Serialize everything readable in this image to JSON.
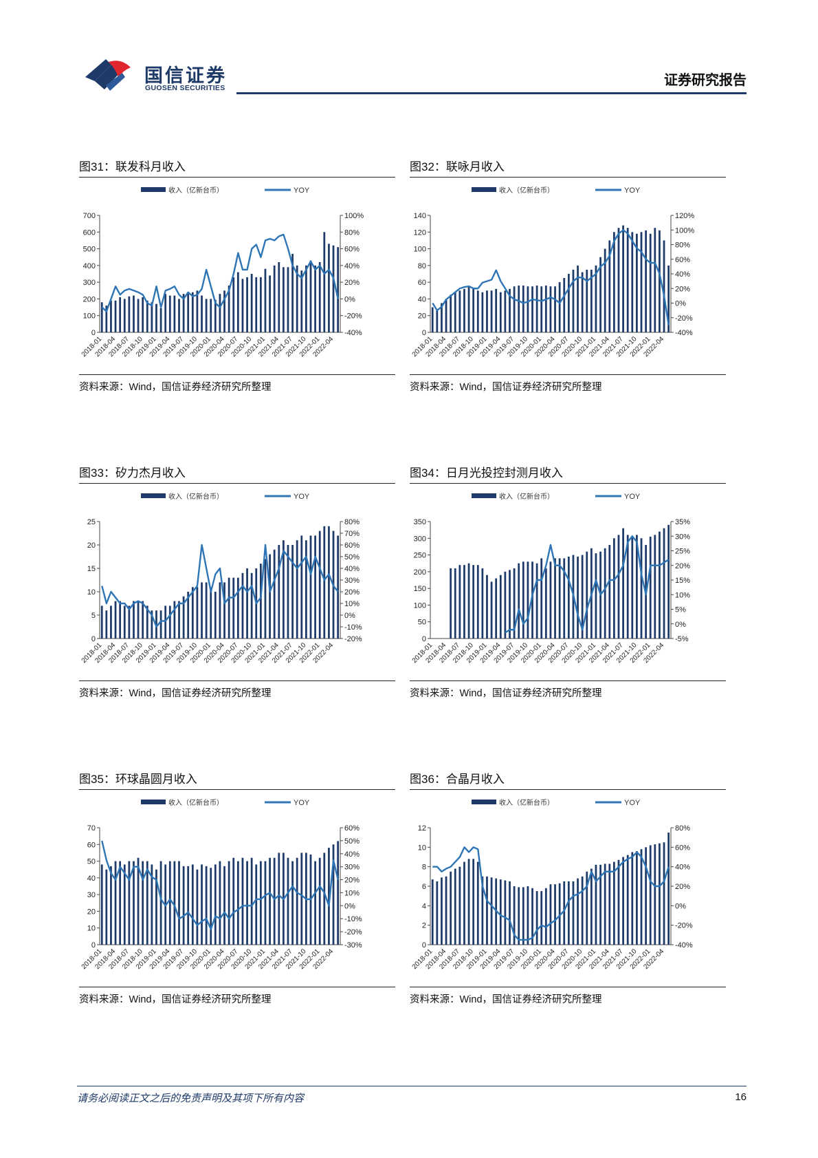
{
  "header": {
    "brand_cn": "国信证券",
    "brand_en": "GUOSEN SECURITIES",
    "report_type": "证券研究报告"
  },
  "footer": {
    "disclaimer": "请务必阅读正文之后的免责声明及其项下所有内容",
    "page_number": "16"
  },
  "colors": {
    "bar": "#1e3a68",
    "line": "#2e75b6",
    "brand": "#1e3a68",
    "brand_red": "#e0262f"
  },
  "x_tick_labels": [
    "2018-01",
    "2018-04",
    "2018-07",
    "2018-10",
    "2019-01",
    "2019-04",
    "2019-07",
    "2019-10",
    "2020-01",
    "2020-04",
    "2020-07",
    "2020-10",
    "2021-01",
    "2021-04",
    "2021-07",
    "2021-10",
    "2022-01",
    "2022-04"
  ],
  "chart_data": [
    {
      "figure": "图31：联发科月收入",
      "source": "资料来源：Wind，国信证券经济研究所整理",
      "type": "bar+line",
      "legend": {
        "bar": "收入（亿新台币）",
        "line": "YOY"
      },
      "x_start": "2018-01",
      "n_months": 53,
      "left_axis": {
        "ticks": [
          "700",
          "600",
          "500",
          "400",
          "300",
          "200",
          "100",
          "0"
        ],
        "min": 0,
        "max": 700
      },
      "right_axis": {
        "ticks": [
          "100%",
          "80%",
          "60%",
          "40%",
          "20%",
          "0%",
          "-20%",
          "-40%"
        ],
        "min": -40,
        "max": 100
      },
      "bars": [
        180,
        160,
        190,
        190,
        210,
        200,
        215,
        220,
        200,
        210,
        190,
        180,
        170,
        145,
        230,
        220,
        220,
        200,
        230,
        235,
        240,
        250,
        220,
        200,
        200,
        195,
        230,
        250,
        280,
        330,
        360,
        320,
        330,
        350,
        330,
        330,
        380,
        340,
        400,
        420,
        390,
        390,
        470,
        400,
        370,
        400,
        430,
        400,
        420,
        600,
        530,
        520,
        510
      ],
      "yoy": [
        -10,
        -15,
        0,
        15,
        5,
        10,
        12,
        10,
        8,
        5,
        -5,
        -8,
        15,
        -10,
        10,
        12,
        15,
        5,
        0,
        8,
        3,
        5,
        12,
        35,
        15,
        -5,
        -10,
        0,
        10,
        30,
        55,
        35,
        35,
        60,
        65,
        50,
        70,
        72,
        70,
        75,
        77,
        60,
        40,
        30,
        25,
        35,
        45,
        35,
        40,
        30,
        35,
        25,
        0
      ]
    },
    {
      "figure": "图32：联咏月收入",
      "source": "资料来源：Wind，国信证券经济研究所整理",
      "type": "bar+line",
      "legend": {
        "bar": "收入（亿新台币）",
        "line": "YOY"
      },
      "x_start": "2018-01",
      "n_months": 53,
      "left_axis": {
        "ticks": [
          "140",
          "120",
          "100",
          "80",
          "60",
          "40",
          "20",
          "0"
        ],
        "min": 0,
        "max": 140
      },
      "right_axis": {
        "ticks": [
          "120%",
          "100%",
          "80%",
          "60%",
          "40%",
          "20%",
          "0%",
          "-20%",
          "-40%"
        ],
        "min": -40,
        "max": 120
      },
      "bars": [
        30,
        28,
        35,
        40,
        45,
        48,
        50,
        52,
        55,
        52,
        50,
        48,
        50,
        50,
        52,
        48,
        50,
        52,
        55,
        56,
        56,
        55,
        55,
        56,
        55,
        56,
        55,
        55,
        60,
        65,
        70,
        75,
        80,
        72,
        75,
        75,
        80,
        90,
        100,
        110,
        120,
        125,
        128,
        125,
        120,
        118,
        120,
        122,
        118,
        125,
        122,
        110,
        80
      ],
      "yoy": [
        0,
        -10,
        -5,
        5,
        10,
        15,
        20,
        22,
        23,
        20,
        20,
        28,
        30,
        32,
        45,
        30,
        20,
        10,
        5,
        3,
        0,
        2,
        5,
        4,
        3,
        5,
        8,
        5,
        0,
        10,
        20,
        30,
        35,
        35,
        30,
        35,
        40,
        50,
        55,
        65,
        85,
        95,
        100,
        95,
        85,
        75,
        70,
        60,
        55,
        55,
        40,
        10,
        -30
      ]
    },
    {
      "figure": "图33：矽力杰月收入",
      "source": "资料来源：Wind，国信证券经济研究所整理",
      "type": "bar+line",
      "legend": {
        "bar": "收入（亿新台币）",
        "line": "YOY"
      },
      "x_start": "2018-01",
      "n_months": 53,
      "left_axis": {
        "ticks": [
          "25",
          "20",
          "15",
          "10",
          "5",
          "0"
        ],
        "min": 0,
        "max": 25
      },
      "right_axis": {
        "ticks": [
          "80%",
          "70%",
          "60%",
          "50%",
          "40%",
          "30%",
          "20%",
          "10%",
          "0%",
          "-10%",
          "-20%"
        ],
        "min": -20,
        "max": 80
      },
      "bars": [
        7,
        6,
        7,
        8,
        8,
        7,
        7,
        8,
        8,
        8,
        7,
        6,
        6,
        6,
        7,
        7,
        8,
        8,
        9,
        10,
        11,
        11,
        12,
        12,
        11,
        10,
        12,
        12,
        13,
        13,
        13,
        14,
        15,
        14,
        15,
        16,
        17,
        18,
        19,
        20,
        21,
        20,
        20,
        21,
        22,
        21,
        22,
        22,
        23,
        24,
        24,
        23,
        22
      ],
      "yoy": [
        25,
        10,
        20,
        15,
        10,
        10,
        5,
        10,
        12,
        10,
        5,
        0,
        -10,
        -5,
        -5,
        0,
        5,
        10,
        10,
        15,
        20,
        25,
        60,
        40,
        20,
        35,
        40,
        10,
        15,
        15,
        20,
        25,
        20,
        25,
        10,
        15,
        60,
        20,
        30,
        40,
        55,
        50,
        45,
        40,
        45,
        50,
        35,
        50,
        40,
        30,
        35,
        25,
        20
      ]
    },
    {
      "figure": "图34：日月光投控封测月收入",
      "source": "资料来源：Wind，国信证券经济研究所整理",
      "type": "bar+line",
      "legend": {
        "bar": "收入（亿新台币）",
        "line": "YOY"
      },
      "x_start": "2018-01",
      "n_months": 53,
      "left_axis": {
        "ticks": [
          "350",
          "300",
          "250",
          "200",
          "150",
          "100",
          "50",
          "0"
        ],
        "min": 0,
        "max": 350
      },
      "right_axis": {
        "ticks": [
          "35%",
          "30%",
          "25%",
          "20%",
          "15%",
          "10%",
          "5%",
          "0%",
          "-5%"
        ],
        "min": -5,
        "max": 35
      },
      "bars": [
        0,
        0,
        0,
        0,
        210,
        210,
        220,
        220,
        225,
        220,
        220,
        210,
        190,
        170,
        180,
        190,
        200,
        205,
        210,
        225,
        230,
        230,
        230,
        225,
        240,
        210,
        230,
        240,
        240,
        240,
        245,
        250,
        245,
        250,
        260,
        270,
        255,
        260,
        270,
        280,
        300,
        310,
        330,
        310,
        305,
        310,
        300,
        280,
        305,
        310,
        320,
        330,
        340
      ],
      "yoy": [
        null,
        null,
        null,
        null,
        null,
        null,
        null,
        null,
        null,
        null,
        null,
        null,
        null,
        null,
        null,
        null,
        -3,
        -2,
        -2,
        5,
        0,
        2,
        10,
        15,
        15,
        20,
        27,
        20,
        20,
        18,
        15,
        10,
        3,
        -2,
        5,
        10,
        15,
        10,
        12,
        15,
        15,
        17,
        20,
        28,
        30,
        28,
        17,
        10,
        20,
        20,
        20,
        21,
        22
      ]
    },
    {
      "figure": "图35：环球晶圆月收入",
      "source": "资料来源：Wind，国信证券经济研究所整理",
      "type": "bar+line",
      "legend": {
        "bar": "收入（亿新台币）",
        "line": "YOY"
      },
      "x_start": "2018-01",
      "n_months": 53,
      "left_axis": {
        "ticks": [
          "70",
          "60",
          "50",
          "40",
          "30",
          "20",
          "10",
          "0"
        ],
        "min": 0,
        "max": 70
      },
      "right_axis": {
        "ticks": [
          "60%",
          "50%",
          "40%",
          "30%",
          "20%",
          "10%",
          "0%",
          "-10%",
          "-20%",
          "-30%"
        ],
        "min": -30,
        "max": 60
      },
      "bars": [
        48,
        45,
        47,
        50,
        50,
        48,
        50,
        50,
        52,
        50,
        50,
        48,
        45,
        50,
        48,
        50,
        50,
        50,
        47,
        47,
        48,
        45,
        48,
        47,
        46,
        48,
        50,
        47,
        50,
        52,
        50,
        52,
        50,
        52,
        48,
        50,
        50,
        52,
        52,
        55,
        55,
        52,
        50,
        52,
        55,
        55,
        54,
        50,
        52,
        55,
        58,
        60,
        62
      ],
      "yoy": [
        50,
        35,
        25,
        20,
        30,
        25,
        20,
        30,
        30,
        20,
        28,
        22,
        20,
        5,
        0,
        5,
        0,
        -10,
        -8,
        -5,
        -10,
        -15,
        -12,
        -10,
        -18,
        -8,
        -10,
        -5,
        -10,
        -5,
        -3,
        0,
        0,
        0,
        5,
        5,
        8,
        10,
        5,
        8,
        5,
        10,
        15,
        10,
        8,
        5,
        5,
        10,
        15,
        10,
        0,
        35,
        20
      ]
    },
    {
      "figure": "图36：合晶月收入",
      "source": "资料来源：Wind，国信证券经济研究所整理",
      "type": "bar+line",
      "legend": {
        "bar": "收入（亿新台币）",
        "line": "YOY"
      },
      "x_start": "2018-01",
      "n_months": 53,
      "left_axis": {
        "ticks": [
          "12",
          "10",
          "8",
          "6",
          "4",
          "2",
          "0"
        ],
        "min": 0,
        "max": 12
      },
      "right_axis": {
        "ticks": [
          "80%",
          "60%",
          "40%",
          "20%",
          "0%",
          "-20%",
          "-40%"
        ],
        "min": -40,
        "max": 80
      },
      "bars": [
        6.7,
        6.5,
        6.9,
        7.0,
        7.5,
        7.8,
        8.0,
        8.5,
        8.8,
        8.8,
        8.5,
        7.0,
        7.0,
        6.9,
        6.8,
        6.7,
        6.6,
        6.5,
        6.0,
        5.9,
        5.9,
        6.0,
        5.8,
        5.5,
        5.5,
        5.8,
        6.2,
        6.2,
        6.3,
        6.5,
        6.5,
        6.5,
        6.8,
        7.0,
        7.5,
        7.8,
        8.2,
        8.2,
        8.3,
        8.3,
        8.5,
        8.7,
        9.0,
        9.2,
        9.5,
        9.6,
        9.8,
        10.0,
        10.2,
        10.3,
        10.4,
        10.5,
        11.5
      ],
      "yoy": [
        40,
        40,
        35,
        38,
        40,
        45,
        50,
        60,
        55,
        60,
        58,
        20,
        5,
        0,
        -5,
        -10,
        -12,
        -15,
        -30,
        -35,
        -35,
        -35,
        -33,
        -25,
        -20,
        -22,
        -18,
        -15,
        -10,
        -5,
        5,
        10,
        12,
        15,
        20,
        35,
        25,
        30,
        35,
        35,
        35,
        40,
        45,
        48,
        50,
        55,
        50,
        40,
        25,
        20,
        20,
        25,
        40
      ]
    }
  ]
}
